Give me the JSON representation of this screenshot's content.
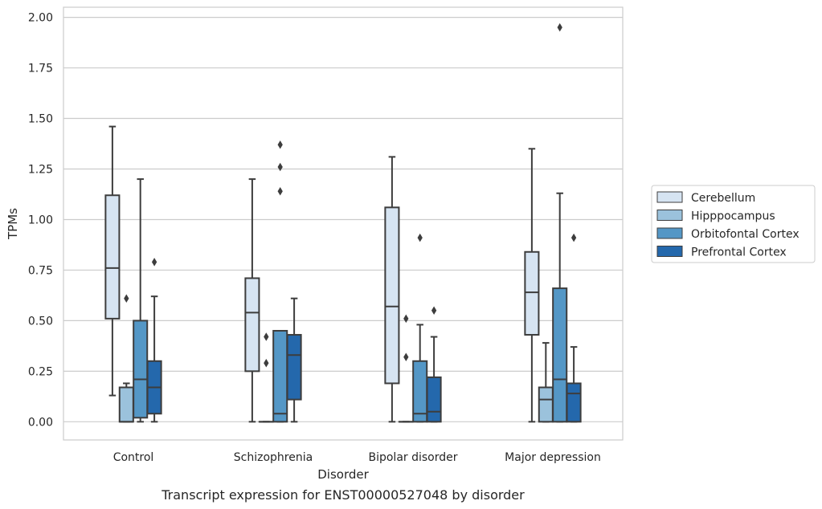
{
  "chart_data": {
    "type": "box",
    "xlabel": "Disorder",
    "ylabel": "TPMs",
    "caption": "Transcript expression for ENST00000527048 by disorder",
    "ylim": [
      -0.09,
      2.05
    ],
    "yticks": [
      0.0,
      0.25,
      0.5,
      0.75,
      1.0,
      1.25,
      1.5,
      1.75,
      2.0
    ],
    "ytick_labels": [
      "0.00",
      "0.25",
      "0.50",
      "0.75",
      "1.00",
      "1.25",
      "1.50",
      "1.75",
      "2.00"
    ],
    "grid": true,
    "legend_position": "right",
    "categories": [
      "Control",
      "Schizophrenia",
      "Bipolar disorder",
      "Major depression"
    ],
    "series": [
      {
        "name": "Cerebellum",
        "color": "#d6e4f2",
        "boxes": [
          {
            "whislo": 0.13,
            "q1": 0.51,
            "med": 0.76,
            "q3": 1.12,
            "whishi": 1.46,
            "fliers": []
          },
          {
            "whislo": 0.0,
            "q1": 0.25,
            "med": 0.54,
            "q3": 0.71,
            "whishi": 1.2,
            "fliers": []
          },
          {
            "whislo": 0.0,
            "q1": 0.19,
            "med": 0.57,
            "q3": 1.06,
            "whishi": 1.31,
            "fliers": []
          },
          {
            "whislo": 0.0,
            "q1": 0.43,
            "med": 0.64,
            "q3": 0.84,
            "whishi": 1.35,
            "fliers": []
          }
        ]
      },
      {
        "name": "Hipppocampus",
        "color": "#9bc2dc",
        "boxes": [
          {
            "whislo": 0.0,
            "q1": 0.0,
            "med": 0.0,
            "q3": 0.17,
            "whishi": 0.19,
            "fliers": [
              0.61
            ]
          },
          {
            "whislo": 0.0,
            "q1": 0.0,
            "med": 0.0,
            "q3": 0.0,
            "whishi": 0.0,
            "fliers": [
              0.29,
              0.42
            ]
          },
          {
            "whislo": 0.0,
            "q1": 0.0,
            "med": 0.0,
            "q3": 0.0,
            "whishi": 0.0,
            "fliers": [
              0.32,
              0.51
            ]
          },
          {
            "whislo": 0.0,
            "q1": 0.0,
            "med": 0.11,
            "q3": 0.17,
            "whishi": 0.39,
            "fliers": []
          }
        ]
      },
      {
        "name": "Orbitofontal Cortex",
        "color": "#5497c6",
        "boxes": [
          {
            "whislo": 0.0,
            "q1": 0.02,
            "med": 0.21,
            "q3": 0.5,
            "whishi": 1.2,
            "fliers": []
          },
          {
            "whislo": 0.0,
            "q1": 0.0,
            "med": 0.04,
            "q3": 0.45,
            "whishi": 0.45,
            "fliers": [
              1.14,
              1.26,
              1.37
            ]
          },
          {
            "whislo": 0.0,
            "q1": 0.0,
            "med": 0.04,
            "q3": 0.3,
            "whishi": 0.48,
            "fliers": [
              0.91
            ]
          },
          {
            "whislo": 0.0,
            "q1": 0.0,
            "med": 0.21,
            "q3": 0.66,
            "whishi": 1.13,
            "fliers": [
              1.95
            ]
          }
        ]
      },
      {
        "name": "Prefrontal Cortex",
        "color": "#2468ac",
        "boxes": [
          {
            "whislo": 0.0,
            "q1": 0.04,
            "med": 0.17,
            "q3": 0.3,
            "whishi": 0.62,
            "fliers": [
              0.79
            ]
          },
          {
            "whislo": 0.0,
            "q1": 0.11,
            "med": 0.33,
            "q3": 0.43,
            "whishi": 0.61,
            "fliers": []
          },
          {
            "whislo": 0.0,
            "q1": 0.0,
            "med": 0.05,
            "q3": 0.22,
            "whishi": 0.42,
            "fliers": [
              0.55
            ]
          },
          {
            "whislo": 0.0,
            "q1": 0.0,
            "med": 0.14,
            "q3": 0.19,
            "whishi": 0.37,
            "fliers": [
              0.91
            ]
          }
        ]
      }
    ]
  }
}
